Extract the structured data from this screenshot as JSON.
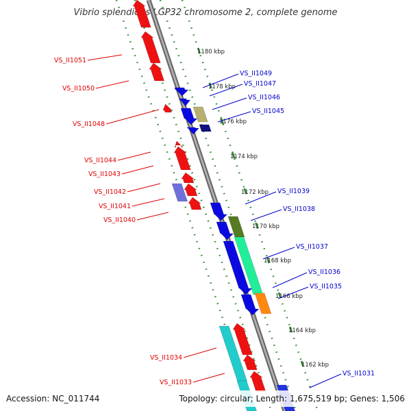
{
  "title": "Vibrio splendidus LGP32 chromosome 2, complete genome",
  "footer": {
    "accession": "Accession: NC_011744",
    "summary": "Topology: circular; Length: 1,675,519 bp; Genes: 1,506"
  },
  "colors": {
    "backbone": "#8a8a8a",
    "ruler_dots": "#2e8b2e",
    "reverse_label": "#e00000",
    "forward_label": "#0000cc"
  },
  "ruler_ticks": [
    "1180 kbp",
    "1178 kbp",
    "1176 kbp",
    "1174 kbp",
    "1172 kbp",
    "1170 kbp",
    "1168 kbp",
    "1166 kbp",
    "1164 kbp",
    "1162 kbp"
  ],
  "reverse_genes": [
    "VS_II1051",
    "VS_II1050",
    "VS_II1048",
    "VS_II1044",
    "VS_II1043",
    "VS_II1042",
    "VS_II1041",
    "VS_II1040",
    "VS_II1034",
    "VS_II1033"
  ],
  "forward_genes": [
    "VS_II1049",
    "VS_II1047",
    "VS_II1046",
    "VS_II1045",
    "VS_II1039",
    "VS_II1038",
    "VS_II1037",
    "VS_II1036",
    "VS_II1035",
    "VS_II1031"
  ]
}
